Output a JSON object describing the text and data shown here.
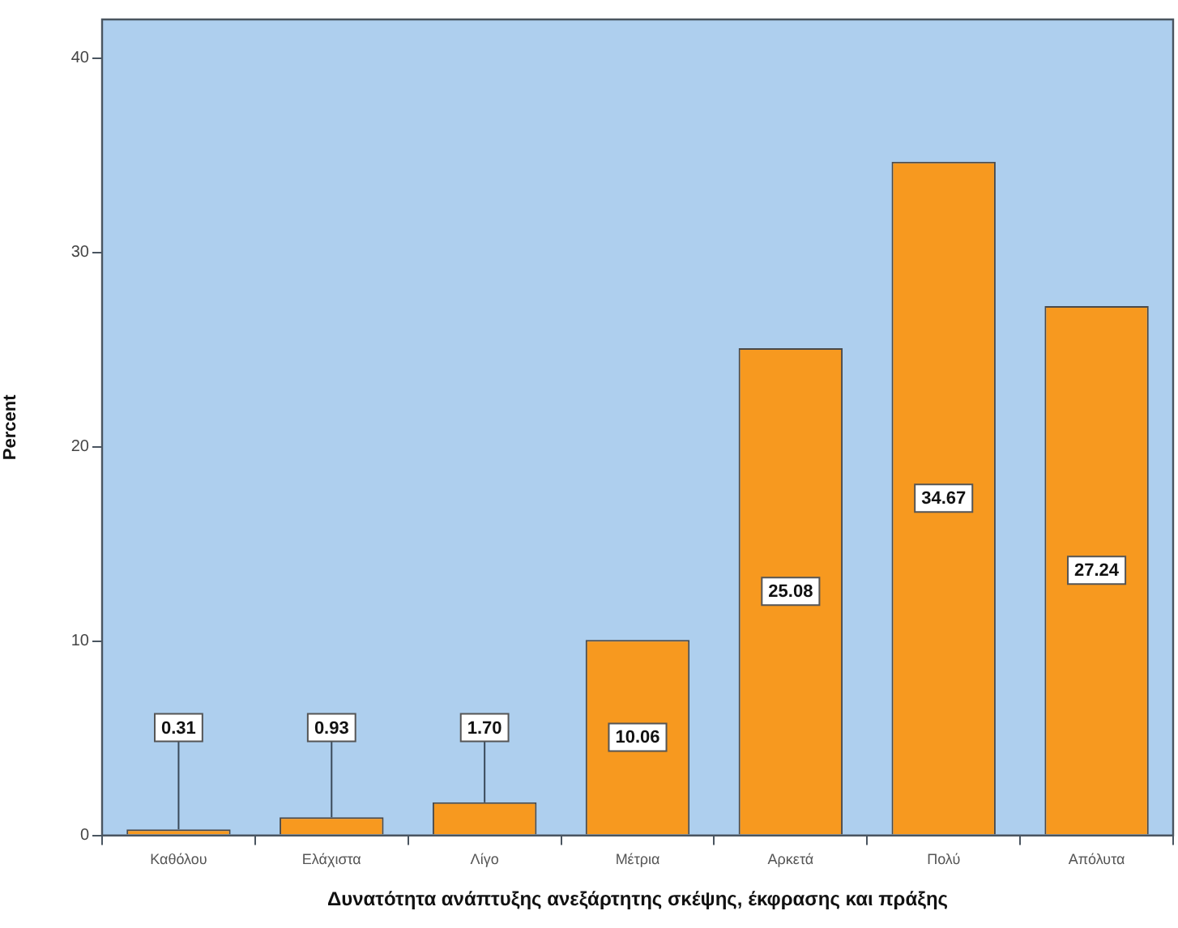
{
  "chart_data": {
    "type": "bar",
    "xlabel": "Δυνατότητα ανάπτυξης ανεξάρτητης σκέψης, έκφρασης και πράξης",
    "ylabel": "Percent",
    "categories": [
      "Καθόλου",
      "Ελάχιστα",
      "Λίγο",
      "Μέτρια",
      "Αρκετά",
      "Πολύ",
      "Απόλυτα"
    ],
    "values": [
      0.31,
      0.93,
      1.7,
      10.06,
      25.08,
      34.67,
      27.24
    ],
    "value_labels": [
      "0.31",
      "0.93",
      "1.70",
      "10.06",
      "25.08",
      "34.67",
      "27.24"
    ],
    "color": "#f7991f",
    "ylim": [
      0,
      42
    ],
    "yticks": [
      0,
      10,
      20,
      30,
      40
    ],
    "grid": false,
    "legend": false
  }
}
